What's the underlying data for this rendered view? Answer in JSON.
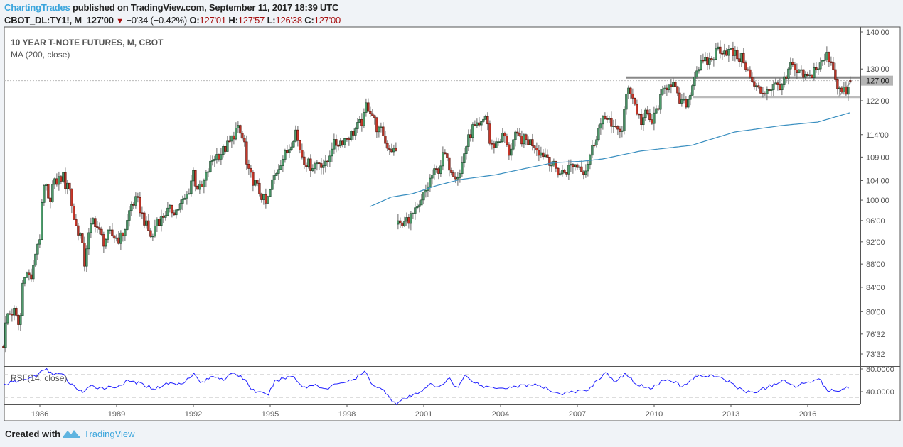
{
  "header": {
    "author": "ChartingTrades",
    "published": " published on TradingView.com, September 11, 2017 18:39 UTC",
    "symbol": "CBOT_DL:TY1!, M",
    "last": "127'00",
    "change": "−0'34 (−0.42%)",
    "o_label": "O:",
    "o": "127'01",
    "h_label": "H:",
    "h": "127'57",
    "l_label": "L:",
    "l": "126'38",
    "c_label": "C:",
    "c": "127'00"
  },
  "legend": {
    "title": "10 YEAR T-NOTE FUTURES, M, CBOT",
    "ma": "MA (200, close)",
    "rsi": "RSI (14, close)"
  },
  "footer": {
    "created": "Created with",
    "brand": "TradingView"
  },
  "colors": {
    "up": "#4e9c6c",
    "up_border": "#1f4d30",
    "down": "#c8372a",
    "down_border": "#5e150e",
    "ma": "#3a8fc0",
    "rsi": "#1f1fff",
    "brand": "#3ba5dc"
  },
  "chart_data": {
    "type": "candlestick",
    "title": "10 YEAR T-NOTE FUTURES, M, CBOT",
    "scale": "log",
    "ylim": [
      73.5,
      140
    ],
    "xlim": [
      1984.58,
      2017.7
    ],
    "current_price": 127.0,
    "current_price_label": "127'00",
    "price_ticks": [
      {
        "label": "140'00",
        "value": 140
      },
      {
        "label": "130'00",
        "value": 130
      },
      {
        "label": "122'00",
        "value": 122
      },
      {
        "label": "114'00",
        "value": 114
      },
      {
        "label": "109'00",
        "value": 109
      },
      {
        "label": "104'00",
        "value": 104
      },
      {
        "label": "100'00",
        "value": 100
      },
      {
        "label": "96'00",
        "value": 96
      },
      {
        "label": "92'00",
        "value": 92
      },
      {
        "label": "88'00",
        "value": 88
      },
      {
        "label": "84'00",
        "value": 84
      },
      {
        "label": "80'00",
        "value": 80
      },
      {
        "label": "76'32",
        "value": 76.5
      },
      {
        "label": "73'32",
        "value": 73.5
      }
    ],
    "time_ticks": [
      "1986",
      "1989",
      "1992",
      "1995",
      "1998",
      "2001",
      "2004",
      "2007",
      "2010",
      "2013",
      "2016"
    ],
    "close_segments": [
      [
        [
          1984.6,
          75
        ],
        [
          1984.7,
          79.5
        ],
        [
          1985.0,
          80
        ],
        [
          1985.2,
          77.5
        ],
        [
          1985.3,
          81.5
        ],
        [
          1985.35,
          86.8
        ],
        [
          1985.7,
          85.5
        ],
        [
          1985.85,
          90.8
        ],
        [
          1986.0,
          93
        ],
        [
          1986.1,
          99.9
        ],
        [
          1986.2,
          104
        ],
        [
          1986.35,
          99
        ],
        [
          1986.5,
          103
        ],
        [
          1986.7,
          104
        ],
        [
          1986.9,
          105
        ],
        [
          1987.0,
          103
        ],
        [
          1987.1,
          104
        ],
        [
          1987.2,
          101
        ],
        [
          1987.3,
          97
        ],
        [
          1987.4,
          95
        ],
        [
          1987.6,
          93
        ],
        [
          1987.75,
          88
        ],
        [
          1987.85,
          92
        ],
        [
          1988.1,
          96.5
        ],
        [
          1988.3,
          94
        ],
        [
          1988.5,
          92
        ],
        [
          1988.7,
          93.5
        ],
        [
          1988.9,
          93
        ],
        [
          1989.1,
          92.5
        ],
        [
          1989.2,
          93
        ],
        [
          1989.4,
          95.5
        ],
        [
          1989.55,
          99
        ],
        [
          1989.8,
          100
        ],
        [
          1990.0,
          97
        ],
        [
          1990.2,
          94.5
        ],
        [
          1990.4,
          92.5
        ],
        [
          1990.55,
          96.5
        ],
        [
          1990.7,
          96
        ],
        [
          1990.9,
          97.5
        ],
        [
          1991.1,
          98
        ],
        [
          1991.35,
          98
        ],
        [
          1991.65,
          100
        ],
        [
          1991.8,
          101.5
        ],
        [
          1992.0,
          106
        ],
        [
          1992.1,
          103
        ],
        [
          1992.3,
          102
        ],
        [
          1992.6,
          106.5
        ],
        [
          1992.8,
          109
        ],
        [
          1993.1,
          110
        ],
        [
          1993.4,
          112
        ],
        [
          1993.7,
          115.5
        ],
        [
          1993.8,
          114.5
        ],
        [
          1994.0,
          112
        ],
        [
          1994.1,
          106
        ],
        [
          1994.4,
          103.5
        ],
        [
          1994.7,
          100.5
        ],
        [
          1994.85,
          99
        ],
        [
          1995.1,
          104
        ],
        [
          1995.4,
          108
        ],
        [
          1995.7,
          110.5
        ],
        [
          1996.0,
          115
        ],
        [
          1996.1,
          112
        ],
        [
          1996.3,
          108.5
        ],
        [
          1996.6,
          107
        ],
        [
          1996.9,
          108
        ],
        [
          1997.2,
          107
        ],
        [
          1997.4,
          111.5
        ],
        [
          1997.6,
          112
        ],
        [
          1997.9,
          113
        ],
        [
          1998.15,
          114
        ],
        [
          1998.65,
          117.5
        ],
        [
          1998.75,
          121
        ],
        [
          1998.95,
          119.5
        ],
        [
          1999.2,
          115
        ],
        [
          1999.4,
          114.5
        ],
        [
          1999.5,
          112
        ],
        [
          1999.7,
          111
        ],
        [
          1999.9,
          110
        ]
      ],
      [
        [
          2000.0,
          96.5
        ],
        [
          2000.1,
          94.5
        ],
        [
          2000.3,
          96
        ],
        [
          2000.55,
          97
        ],
        [
          2000.85,
          98.5
        ],
        [
          2001.0,
          101
        ],
        [
          2001.1,
          102
        ],
        [
          2001.3,
          105
        ],
        [
          2001.6,
          106.5
        ],
        [
          2001.8,
          110
        ],
        [
          2001.9,
          108
        ],
        [
          2002.2,
          105.5
        ],
        [
          2002.4,
          105
        ],
        [
          2002.6,
          110.5
        ],
        [
          2002.9,
          115.5
        ],
        [
          2003.2,
          115.5
        ],
        [
          2003.45,
          119
        ],
        [
          2003.6,
          111
        ],
        [
          2003.8,
          112
        ],
        [
          2004.15,
          114
        ],
        [
          2004.3,
          109.5
        ],
        [
          2004.55,
          113.5
        ],
        [
          2004.8,
          113
        ],
        [
          2005.1,
          112.5
        ],
        [
          2005.3,
          112
        ],
        [
          2005.55,
          110
        ],
        [
          2005.8,
          109.5
        ],
        [
          2006.0,
          107.5
        ],
        [
          2006.3,
          105.5
        ],
        [
          2006.55,
          106
        ],
        [
          2006.8,
          107.5
        ],
        [
          2007.1,
          107
        ],
        [
          2007.3,
          106
        ],
        [
          2007.5,
          109.5
        ],
        [
          2007.8,
          115
        ],
        [
          2008.0,
          117
        ],
        [
          2008.2,
          119
        ],
        [
          2008.35,
          114.5
        ],
        [
          2008.55,
          116
        ],
        [
          2008.75,
          114.5
        ],
        [
          2008.9,
          123
        ],
        [
          2009.0,
          126
        ],
        [
          2009.15,
          123
        ],
        [
          2009.35,
          119
        ],
        [
          2009.5,
          117
        ],
        [
          2009.7,
          119
        ],
        [
          2009.9,
          116.5
        ],
        [
          2010.1,
          120
        ],
        [
          2010.35,
          124
        ],
        [
          2010.6,
          127
        ],
        [
          2010.75,
          126
        ],
        [
          2010.95,
          122
        ],
        [
          2011.2,
          121
        ],
        [
          2011.4,
          123
        ],
        [
          2011.5,
          127
        ],
        [
          2011.7,
          130.5
        ],
        [
          2011.95,
          131.5
        ],
        [
          2012.25,
          132.5
        ],
        [
          2012.5,
          135.5
        ],
        [
          2012.7,
          135
        ],
        [
          2013.0,
          134.5
        ],
        [
          2013.3,
          133
        ],
        [
          2013.5,
          132.5
        ],
        [
          2013.65,
          129.5
        ],
        [
          2013.8,
          126.5
        ],
        [
          2014.0,
          125
        ],
        [
          2014.2,
          124
        ],
        [
          2014.45,
          125
        ],
        [
          2014.65,
          125.5
        ],
        [
          2014.95,
          126
        ],
        [
          2015.15,
          127
        ],
        [
          2015.3,
          131
        ],
        [
          2015.55,
          129
        ],
        [
          2015.75,
          128.5
        ],
        [
          2016.05,
          127.5
        ],
        [
          2016.25,
          130
        ],
        [
          2016.45,
          130.5
        ],
        [
          2016.75,
          133.5
        ],
        [
          2016.9,
          132.5
        ],
        [
          2017.0,
          130
        ],
        [
          2017.2,
          125
        ],
        [
          2017.35,
          124
        ],
        [
          2017.55,
          124.5
        ],
        [
          2017.65,
          125.5
        ],
        [
          2017.7,
          127
        ]
      ]
    ],
    "ma200": {
      "label": "MA (200, close)",
      "points": [
        [
          1998.89,
          98.7
        ],
        [
          1999.72,
          100.6
        ],
        [
          2000.56,
          101.3
        ],
        [
          2001.47,
          102.9
        ],
        [
          2002.42,
          104.2
        ],
        [
          2003.81,
          105.2
        ],
        [
          2005.19,
          106.8
        ],
        [
          2006.11,
          107.8
        ],
        [
          2007.22,
          108.1
        ],
        [
          2008.0,
          108.6
        ],
        [
          2009.44,
          110.3
        ],
        [
          2011.47,
          111.6
        ],
        [
          2013.14,
          114.6
        ],
        [
          2015.0,
          116.1
        ],
        [
          2016.39,
          116.9
        ],
        [
          2016.86,
          117.7
        ],
        [
          2017.64,
          119.1
        ]
      ]
    },
    "levels": [
      {
        "value": 127.8,
        "from": 2008.9,
        "style": "resistance"
      },
      {
        "value": 122.9,
        "from": 2011.5,
        "style": "support"
      }
    ],
    "trendline": [
      [
        2017.2,
        122.9
      ],
      [
        2017.7,
        126.8
      ]
    ],
    "rsi": {
      "label": "RSI (14, close)",
      "ylim": [
        0,
        100
      ],
      "bands": [
        70,
        30
      ],
      "ticks": [
        {
          "label": "80.0000",
          "value": 80
        },
        {
          "label": "40.0000",
          "value": 40
        }
      ],
      "points": [
        [
          1984.6,
          53
        ],
        [
          1985.5,
          62
        ],
        [
          1986.0,
          72
        ],
        [
          1986.2,
          80
        ],
        [
          1986.5,
          72
        ],
        [
          1986.9,
          70
        ],
        [
          1987.2,
          53
        ],
        [
          1987.7,
          39
        ],
        [
          1988.0,
          49
        ],
        [
          1988.5,
          47
        ],
        [
          1989.0,
          49
        ],
        [
          1989.5,
          59
        ],
        [
          1990.0,
          53
        ],
        [
          1990.5,
          45
        ],
        [
          1991.0,
          55
        ],
        [
          1991.5,
          53
        ],
        [
          1992.0,
          72
        ],
        [
          1992.3,
          55
        ],
        [
          1992.8,
          68
        ],
        [
          1993.2,
          62
        ],
        [
          1993.6,
          73
        ],
        [
          1994.0,
          62
        ],
        [
          1994.3,
          43
        ],
        [
          1994.9,
          33
        ],
        [
          1995.2,
          59
        ],
        [
          1995.9,
          68
        ],
        [
          1996.3,
          47
        ],
        [
          1996.8,
          53
        ],
        [
          1997.2,
          43
        ],
        [
          1997.6,
          55
        ],
        [
          1998.2,
          59
        ],
        [
          1998.7,
          75
        ],
        [
          1999.0,
          53
        ],
        [
          1999.5,
          40
        ],
        [
          1999.9,
          18
        ],
        [
          2000.3,
          28
        ],
        [
          2000.8,
          38
        ],
        [
          2001.2,
          53
        ],
        [
          2001.6,
          47
        ],
        [
          2002.0,
          65
        ],
        [
          2002.3,
          45
        ],
        [
          2002.6,
          68
        ],
        [
          2003.3,
          49
        ],
        [
          2004.2,
          47
        ],
        [
          2005.3,
          53
        ],
        [
          2006.35,
          36
        ],
        [
          2007.4,
          43
        ],
        [
          2008.1,
          74
        ],
        [
          2008.5,
          55
        ],
        [
          2008.85,
          72
        ],
        [
          2009.4,
          51
        ],
        [
          2009.9,
          47
        ],
        [
          2010.55,
          64
        ],
        [
          2011.1,
          48
        ],
        [
          2011.6,
          66
        ],
        [
          2012.25,
          69
        ],
        [
          2013.05,
          55
        ],
        [
          2013.4,
          43
        ],
        [
          2013.85,
          38
        ],
        [
          2014.4,
          47
        ],
        [
          2015.0,
          59
        ],
        [
          2015.55,
          49
        ],
        [
          2016.05,
          59
        ],
        [
          2016.45,
          62
        ],
        [
          2016.8,
          41
        ],
        [
          2017.25,
          43
        ],
        [
          2017.6,
          49
        ]
      ]
    }
  }
}
